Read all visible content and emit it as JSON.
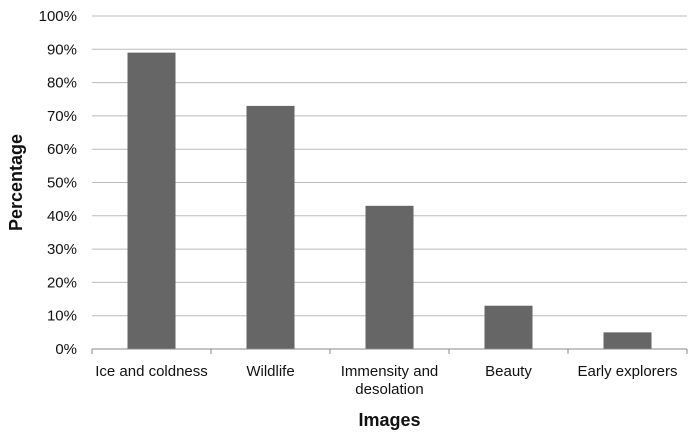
{
  "chart_data": {
    "type": "bar",
    "categories": [
      [
        "Ice and coldness"
      ],
      [
        "Wildlife"
      ],
      [
        "Immensity and",
        "desolation"
      ],
      [
        "Beauty"
      ],
      [
        "Early explorers"
      ]
    ],
    "values": [
      89,
      73,
      43,
      13,
      5
    ],
    "ylim": [
      0,
      100
    ],
    "yticks": [
      0,
      10,
      20,
      30,
      40,
      50,
      60,
      70,
      80,
      90,
      100
    ],
    "ytick_labels": [
      "0%",
      "10%",
      "20%",
      "30%",
      "40%",
      "50%",
      "60%",
      "70%",
      "80%",
      "90%",
      "100%"
    ],
    "xlabel": "Images",
    "ylabel": "Percentage",
    "grid": true,
    "legend": "none",
    "bar_color": "#666666",
    "grid_color": "#bbbbbb"
  }
}
